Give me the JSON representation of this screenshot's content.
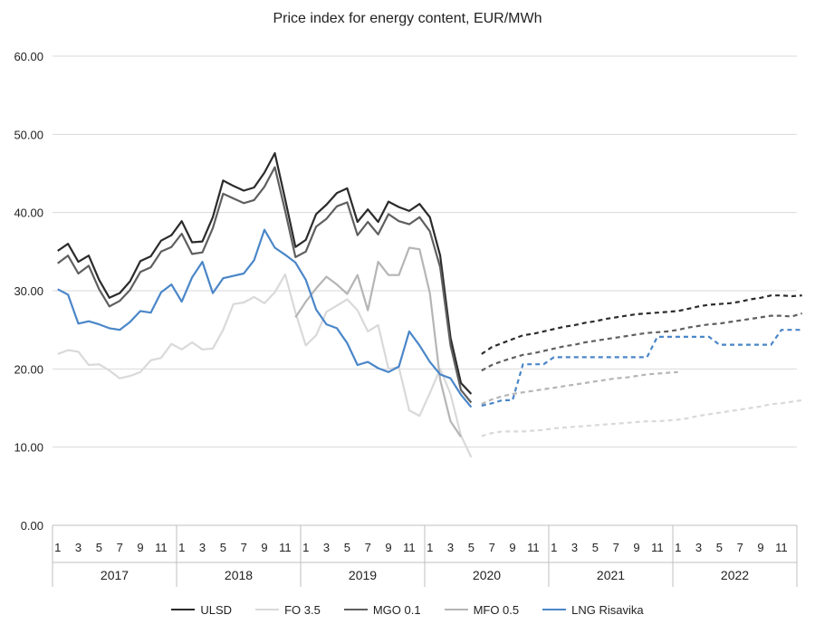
{
  "chart_data": {
    "type": "line",
    "title": "Price index for energy content, EUR/MWh",
    "xlabel": "",
    "ylabel": "",
    "ylim": [
      0,
      60
    ],
    "yticks": [
      "0.00",
      "10.00",
      "20.00",
      "30.00",
      "40.00",
      "50.00",
      "60.00"
    ],
    "grid": true,
    "legend_position": "bottom",
    "x_month_labels": [
      "1",
      "3",
      "5",
      "7",
      "9",
      "11",
      "1",
      "3",
      "5",
      "7",
      "9",
      "11",
      "1",
      "3",
      "5",
      "7",
      "9",
      "11",
      "1",
      "3",
      "5",
      "7",
      "9",
      "11",
      "1",
      "3",
      "5",
      "7",
      "9",
      "11",
      "1",
      "3",
      "5",
      "7",
      "9",
      "11"
    ],
    "x_years": [
      "2017",
      "2018",
      "2019",
      "2020",
      "2021",
      "2022"
    ],
    "x_index_note": "x is month index: 1 = Jan 2017 ... 72 = Dec 2022",
    "series": [
      {
        "name": "ULSD",
        "color": "#2b2b2b",
        "style": "solid",
        "x_start": 1,
        "values": [
          35.1,
          36.0,
          33.7,
          34.5,
          31.4,
          29.1,
          29.7,
          31.2,
          33.8,
          34.4,
          36.4,
          37.1,
          38.9,
          36.2,
          36.3,
          39.4,
          44.1,
          43.4,
          42.8,
          43.2,
          45.1,
          47.6,
          41.7,
          35.6,
          36.5,
          39.8,
          41.0,
          42.5,
          43.1,
          38.8,
          40.4,
          38.8,
          41.4,
          40.7,
          40.2,
          41.1,
          39.4,
          34.5,
          24.0,
          18.2,
          16.8
        ]
      },
      {
        "name": "ULSD forecast",
        "color": "#2b2b2b",
        "style": "dashed",
        "x_start": 42,
        "values": [
          21.9,
          22.8,
          23.3,
          23.8,
          24.3,
          24.5,
          24.8,
          25.1,
          25.4,
          25.6,
          25.9,
          26.1,
          26.4,
          26.6,
          26.8,
          27.0,
          27.1,
          27.2,
          27.3,
          27.4,
          27.7,
          28.0,
          28.2,
          28.3,
          28.4,
          28.6,
          28.9,
          29.1,
          29.4,
          29.4,
          29.3,
          29.4
        ]
      },
      {
        "name": "FO 3.5",
        "color": "#d9d9d9",
        "style": "solid",
        "x_start": 1,
        "values": [
          21.9,
          22.4,
          22.2,
          20.5,
          20.6,
          19.8,
          18.8,
          19.1,
          19.6,
          21.1,
          21.4,
          23.2,
          22.5,
          23.4,
          22.5,
          22.6,
          25.0,
          28.3,
          28.5,
          29.2,
          28.4,
          29.8,
          32.1,
          27.2,
          23.0,
          24.3,
          27.3,
          28.1,
          28.9,
          27.5,
          24.8,
          25.6,
          20.0,
          20.2,
          14.7,
          14.0,
          16.9,
          20.0,
          16.8,
          11.5,
          8.7
        ]
      },
      {
        "name": "FO 3.5 forecast",
        "color": "#d9d9d9",
        "style": "dashed",
        "x_start": 42,
        "values": [
          11.4,
          11.8,
          12.0,
          12.0,
          12.0,
          12.1,
          12.2,
          12.4,
          12.5,
          12.6,
          12.7,
          12.8,
          12.9,
          13.0,
          13.1,
          13.2,
          13.3,
          13.3,
          13.4,
          13.5,
          13.7,
          14.0,
          14.2,
          14.4,
          14.6,
          14.8,
          15.0,
          15.2,
          15.5,
          15.6,
          15.8,
          16.0
        ]
      },
      {
        "name": "MGO 0.1",
        "color": "#5f5f5f",
        "style": "solid",
        "x_start": 1,
        "values": [
          33.5,
          34.5,
          32.2,
          33.2,
          30.2,
          28.0,
          28.7,
          30.1,
          32.4,
          33.0,
          35.0,
          35.6,
          37.3,
          34.7,
          34.9,
          38.0,
          42.4,
          41.8,
          41.2,
          41.6,
          43.3,
          45.8,
          40.2,
          34.3,
          35.0,
          38.2,
          39.2,
          40.8,
          41.3,
          37.1,
          38.8,
          37.2,
          39.8,
          38.9,
          38.5,
          39.4,
          37.6,
          33.0,
          23.0,
          17.3,
          15.7
        ]
      },
      {
        "name": "MGO 0.1 forecast",
        "color": "#5f5f5f",
        "style": "dashed",
        "x_start": 42,
        "values": [
          19.8,
          20.5,
          21.0,
          21.4,
          21.8,
          22.0,
          22.3,
          22.6,
          22.9,
          23.1,
          23.4,
          23.6,
          23.8,
          24.0,
          24.2,
          24.4,
          24.6,
          24.7,
          24.8,
          25.0,
          25.3,
          25.5,
          25.7,
          25.8,
          26.0,
          26.2,
          26.4,
          26.6,
          26.8,
          26.8,
          26.7,
          27.1
        ]
      },
      {
        "name": "MFO 0.5",
        "color": "#b5b5b5",
        "style": "solid",
        "x_start": 24,
        "values": [
          26.6,
          28.6,
          30.3,
          31.8,
          30.8,
          29.6,
          32.0,
          27.5,
          33.7,
          32.0,
          32.0,
          35.5,
          35.3,
          29.7,
          18.6,
          13.3,
          11.3
        ]
      },
      {
        "name": "MFO 0.5 forecast",
        "color": "#b5b5b5",
        "style": "dashed",
        "x_start": 42,
        "values": [
          15.5,
          16.1,
          16.5,
          16.8,
          17.0,
          17.2,
          17.4,
          17.6,
          17.8,
          18.0,
          18.2,
          18.4,
          18.6,
          18.8,
          18.9,
          19.1,
          19.3,
          19.4,
          19.5,
          19.6
        ]
      },
      {
        "name": "LNG Risavika",
        "color": "#4a86c8",
        "style": "solid",
        "x_start": 1,
        "values": [
          30.2,
          29.5,
          25.8,
          26.1,
          25.7,
          25.2,
          25.0,
          26.0,
          27.4,
          27.2,
          29.8,
          30.8,
          28.6,
          31.7,
          33.7,
          29.7,
          31.6,
          31.9,
          32.2,
          33.9,
          37.8,
          35.5,
          34.6,
          33.6,
          31.4,
          27.6,
          25.7,
          25.2,
          23.3,
          20.5,
          20.9,
          20.1,
          19.6,
          20.3,
          24.8,
          23.0,
          20.9,
          19.3,
          18.8,
          16.7,
          15.1
        ]
      },
      {
        "name": "LNG Risavika forecast",
        "color": "#4a86c8",
        "style": "dashed",
        "x_start": 42,
        "values": [
          15.3,
          15.6,
          16.0,
          16.0,
          20.6,
          20.6,
          20.6,
          21.5,
          21.5,
          21.5,
          21.5,
          21.5,
          21.5,
          21.5,
          21.5,
          21.5,
          21.5,
          24.1,
          24.1,
          24.1,
          24.1,
          24.1,
          24.1,
          23.1,
          23.1,
          23.1,
          23.1,
          23.1,
          23.1,
          25.0,
          25.0,
          25.0
        ]
      }
    ],
    "legend": [
      {
        "label": "ULSD",
        "color": "#2b2b2b"
      },
      {
        "label": "FO 3.5",
        "color": "#d9d9d9"
      },
      {
        "label": "MGO 0.1",
        "color": "#5f5f5f"
      },
      {
        "label": "MFO 0.5",
        "color": "#b5b5b5"
      },
      {
        "label": "LNG Risavika",
        "color": "#4a86c8"
      }
    ]
  }
}
